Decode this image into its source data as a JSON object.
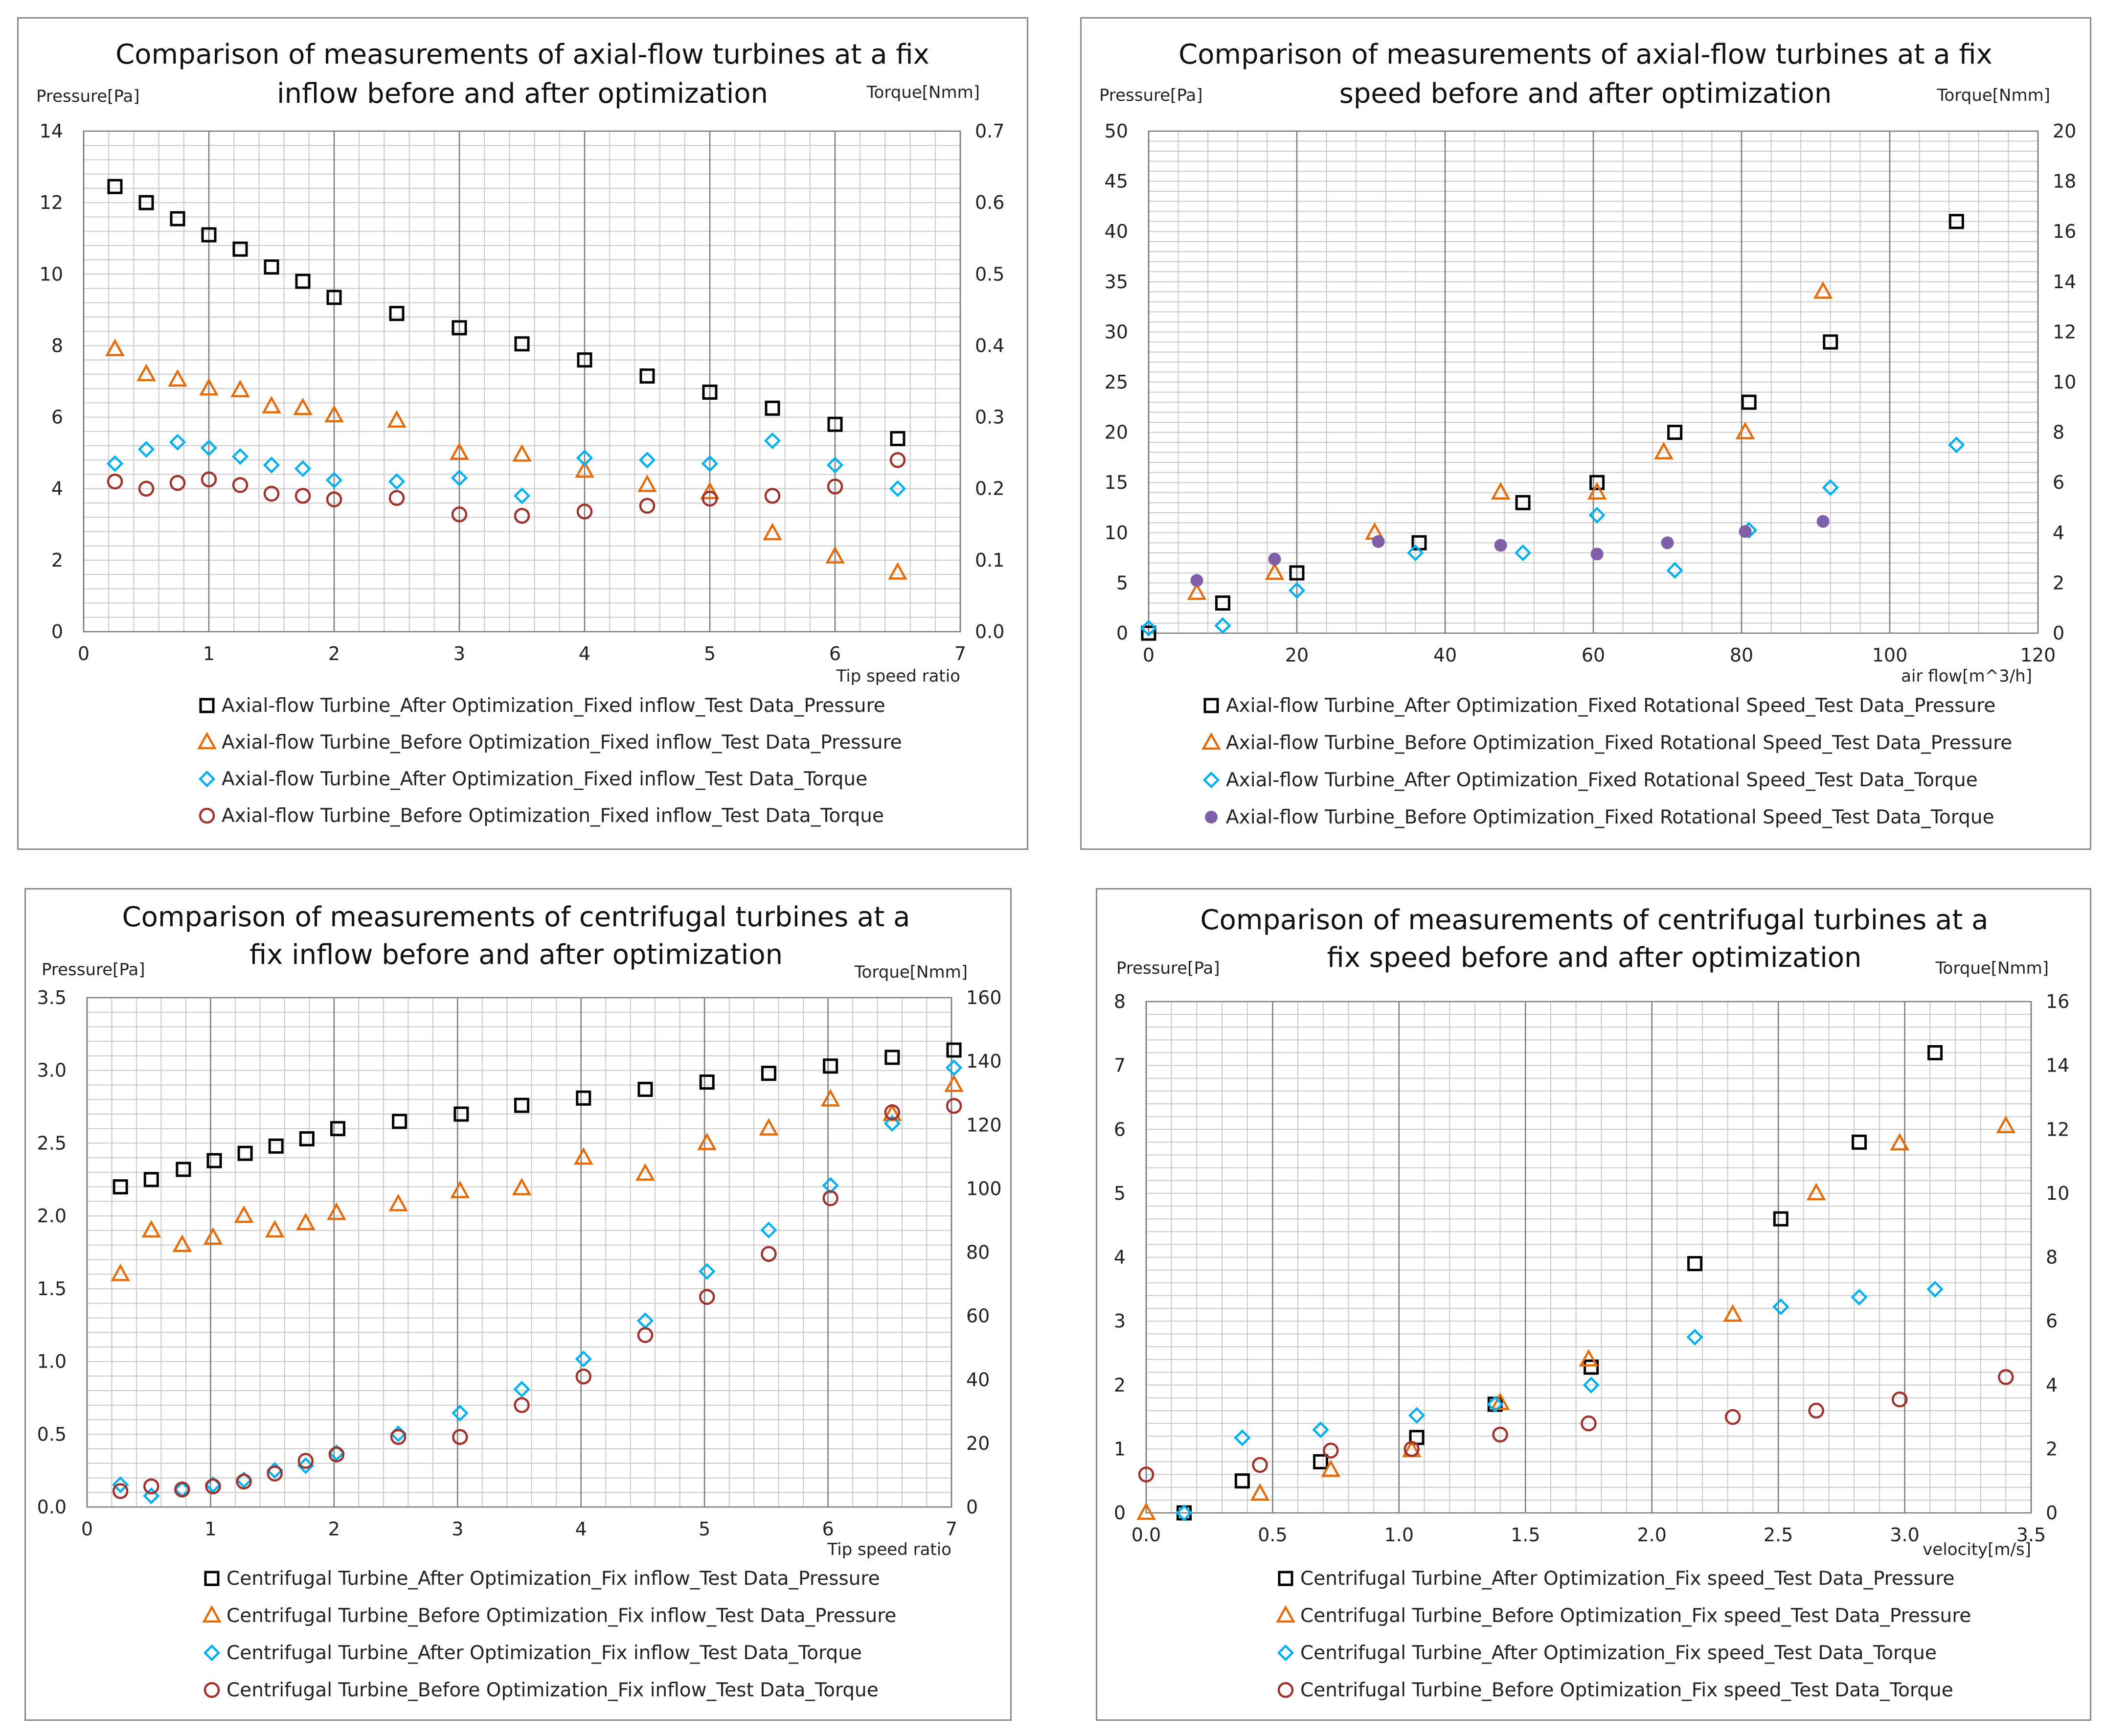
{
  "chart_data": [
    {
      "type": "scatter",
      "title": [
        "Comparison of measurements of axial-flow turbines at a fix",
        "inflow before and after optimization"
      ],
      "ylabel": "Pressure[Pa]",
      "y2label": "Torque[Nmm]",
      "xlabel": "Tip speed ratio",
      "xlim": [
        0,
        7
      ],
      "xstep": 1,
      "xdec": 0,
      "ylim": [
        0,
        14
      ],
      "ystep": 2,
      "ydec": 0,
      "y2lim": [
        0,
        0.7
      ],
      "y2step": 0.1,
      "y2dec": 1,
      "series": [
        {
          "name": "Axial-flow Turbine_After Optimization_Fixed inflow_Test Data_Pressure",
          "marker": "square",
          "color": "#000000",
          "axis": "left",
          "x": [
            0.25,
            0.5,
            0.75,
            1,
            1.25,
            1.5,
            1.75,
            2,
            2.5,
            3,
            3.5,
            4,
            4.5,
            5,
            5.5,
            6,
            6.5
          ],
          "y": [
            12.45,
            12.0,
            11.55,
            11.1,
            10.7,
            10.2,
            9.8,
            9.35,
            8.9,
            8.5,
            8.05,
            7.6,
            7.15,
            6.7,
            6.25,
            5.8,
            5.4
          ]
        },
        {
          "name": "Axial-flow Turbine_Before Optimization_Fixed inflow_Test Data_Pressure",
          "marker": "triangle",
          "color": "#e46c0a",
          "axis": "left",
          "x": [
            0.25,
            0.5,
            0.75,
            1,
            1.25,
            1.5,
            1.75,
            2,
            2.5,
            3,
            3.5,
            4,
            4.5,
            5,
            5.5,
            6,
            6.5
          ],
          "y": [
            7.9,
            7.2,
            7.05,
            6.8,
            6.75,
            6.3,
            6.25,
            6.05,
            5.9,
            5.0,
            4.95,
            4.5,
            4.1,
            3.9,
            2.75,
            2.1,
            1.65
          ]
        },
        {
          "name": "Axial-flow Turbine_After Optimization_Fixed inflow_Test Data_Torque",
          "marker": "diamond",
          "color": "#00b0f0",
          "axis": "right",
          "x": [
            0.25,
            0.5,
            0.75,
            1,
            1.25,
            1.5,
            1.75,
            2,
            2.5,
            3,
            3.5,
            4,
            4.5,
            5,
            5.5,
            6,
            6.5
          ],
          "y": [
            0.235,
            0.255,
            0.265,
            0.257,
            0.245,
            0.233,
            0.228,
            0.212,
            0.21,
            0.215,
            0.19,
            0.243,
            0.24,
            0.235,
            0.267,
            0.233,
            0.2
          ]
        },
        {
          "name": "Axial-flow Turbine_Before Optimization_Fixed inflow_Test Data_Torque",
          "marker": "circle",
          "color": "#a0322d",
          "axis": "right",
          "x": [
            0.25,
            0.5,
            0.75,
            1,
            1.25,
            1.5,
            1.75,
            2,
            2.5,
            3,
            3.5,
            4,
            4.5,
            5,
            5.5,
            6,
            6.5
          ],
          "y": [
            0.21,
            0.2,
            0.208,
            0.213,
            0.205,
            0.193,
            0.19,
            0.185,
            0.187,
            0.164,
            0.162,
            0.168,
            0.176,
            0.186,
            0.19,
            0.203,
            0.24
          ]
        }
      ]
    },
    {
      "type": "scatter",
      "title": [
        "Comparison of measurements of axial-flow turbines at a fix",
        "speed before and after optimization"
      ],
      "ylabel": "Pressure[Pa]",
      "y2label": "Torque[Nmm]",
      "xlabel": "air flow[m^3/h]",
      "xlim": [
        0,
        120
      ],
      "xstep": 20,
      "xdec": 0,
      "ylim": [
        0,
        50
      ],
      "ystep": 5,
      "ydec": 0,
      "y2lim": [
        0,
        20
      ],
      "y2step": 2,
      "y2dec": 0,
      "series": [
        {
          "name": "Axial-flow Turbine_After Optimization_Fixed Rotational Speed_Test Data_Pressure",
          "marker": "square",
          "color": "#000000",
          "axis": "left",
          "x": [
            0,
            10,
            20,
            36.5,
            50.5,
            60.5,
            71,
            81,
            92,
            109
          ],
          "y": [
            0,
            3,
            6,
            9,
            13,
            15,
            20,
            23,
            29,
            41
          ]
        },
        {
          "name": "Axial-flow Turbine_Before Optimization_Fixed Rotational Speed_Test Data_Pressure",
          "marker": "triangle",
          "color": "#e46c0a",
          "axis": "left",
          "x": [
            6.5,
            17,
            30.5,
            47.5,
            60.5,
            69.5,
            80.5,
            91
          ],
          "y": [
            4,
            6,
            10,
            14,
            14,
            18,
            20,
            34
          ]
        },
        {
          "name": "Axial-flow Turbine_After Optimization_Fixed Rotational Speed_Test Data_Torque",
          "marker": "diamond",
          "color": "#00b0f0",
          "axis": "right",
          "x": [
            0,
            10,
            20,
            36,
            50.5,
            60.5,
            71,
            81,
            92,
            109
          ],
          "y": [
            0.2,
            0.3,
            1.7,
            3.2,
            3.2,
            4.7,
            2.5,
            4.1,
            5.8,
            7.5
          ]
        },
        {
          "name": "Axial-flow Turbine_Before Optimization_Fixed Rotational Speed_Test Data_Torque",
          "marker": "dot",
          "color": "#7f60a8",
          "axis": "right",
          "x": [
            6.5,
            17,
            31,
            47.5,
            60.5,
            70,
            80.5,
            91
          ],
          "y": [
            2.1,
            2.95,
            3.65,
            3.5,
            3.15,
            3.6,
            4.05,
            4.45
          ]
        }
      ]
    },
    {
      "type": "scatter",
      "title": [
        "Comparison of measurements of centrifugal turbines at a",
        "fix inflow before and after optimization"
      ],
      "ylabel": "Pressure[Pa]",
      "y2label": "Torque[Nmm]",
      "xlabel": "Tip speed ratio",
      "xlim": [
        0,
        7
      ],
      "xstep": 1,
      "xdec": 0,
      "ylim": [
        0,
        3.5
      ],
      "ystep": 0.5,
      "ydec": 1,
      "y2lim": [
        0,
        160
      ],
      "y2step": 20,
      "y2dec": 0,
      "series": [
        {
          "name": "Centrifugal Turbine_After Optimization_Fix inflow_Test Data_Pressure",
          "marker": "square",
          "color": "#000000",
          "axis": "left",
          "x": [
            0.27,
            0.52,
            0.78,
            1.03,
            1.28,
            1.53,
            1.78,
            2.03,
            2.53,
            3.03,
            3.52,
            4.02,
            4.52,
            5.02,
            5.52,
            6.02,
            6.52,
            7.02
          ],
          "y": [
            2.2,
            2.25,
            2.32,
            2.38,
            2.43,
            2.48,
            2.53,
            2.6,
            2.65,
            2.7,
            2.76,
            2.81,
            2.87,
            2.92,
            2.98,
            3.03,
            3.09,
            3.14
          ]
        },
        {
          "name": "Centrifugal Turbine_Before Optimization_Fix inflow_Test Data_Pressure",
          "marker": "triangle",
          "color": "#e46c0a",
          "axis": "left",
          "x": [
            0.27,
            0.52,
            0.77,
            1.02,
            1.27,
            1.52,
            1.77,
            2.02,
            2.52,
            3.02,
            3.52,
            4.02,
            4.52,
            5.02,
            5.52,
            6.02,
            6.52,
            7.02
          ],
          "y": [
            1.6,
            1.9,
            1.8,
            1.85,
            2.0,
            1.9,
            1.95,
            2.02,
            2.08,
            2.17,
            2.19,
            2.4,
            2.29,
            2.5,
            2.6,
            2.8,
            2.7,
            2.9
          ]
        },
        {
          "name": "Centrifugal Turbine_After Optimization_Fix inflow_Test Data_Torque",
          "marker": "diamond",
          "color": "#00b0f0",
          "axis": "right",
          "x": [
            0.27,
            0.52,
            0.77,
            1.02,
            1.27,
            1.52,
            1.77,
            2.02,
            2.52,
            3.02,
            3.52,
            4.02,
            4.52,
            5.02,
            5.52,
            6.02,
            6.52,
            7.02
          ],
          "y": [
            7,
            3.5,
            5.5,
            7,
            8.5,
            11.5,
            13,
            17,
            23,
            29.5,
            37,
            46.5,
            58.5,
            74,
            87,
            101,
            120.5,
            138
          ]
        },
        {
          "name": "Centrifugal Turbine_Before Optimization_Fix inflow_Test Data_Torque",
          "marker": "circle",
          "color": "#a0322d",
          "axis": "right",
          "x": [
            0.27,
            0.52,
            0.77,
            1.02,
            1.27,
            1.52,
            1.77,
            2.02,
            2.52,
            3.02,
            3.52,
            4.02,
            4.52,
            5.02,
            5.52,
            6.02,
            6.52,
            7.02
          ],
          "y": [
            5,
            6.5,
            5.5,
            6.5,
            8,
            10.5,
            14.5,
            16.5,
            22,
            22,
            32,
            41,
            54,
            66,
            79.5,
            97,
            124,
            126
          ]
        }
      ]
    },
    {
      "type": "scatter",
      "title": [
        "Comparison of measurements of centrifugal turbines at a",
        "fix speed before and after optimization"
      ],
      "ylabel": "Pressure[Pa]",
      "y2label": "Torque[Nmm]",
      "xlabel": "velocity[m/s]",
      "xlim": [
        0,
        3.5
      ],
      "xstep": 0.5,
      "xdec": 1,
      "ylim": [
        0,
        8
      ],
      "ystep": 1,
      "ydec": 0,
      "y2lim": [
        0,
        16
      ],
      "y2step": 2,
      "y2dec": 0,
      "series": [
        {
          "name": "Centrifugal Turbine_After Optimization_Fix speed_Test Data_Pressure",
          "marker": "square",
          "color": "#000000",
          "axis": "left",
          "x": [
            0.15,
            0.38,
            0.69,
            1.07,
            1.38,
            1.76,
            2.17,
            2.51,
            2.82,
            3.12
          ],
          "y": [
            0,
            0.5,
            0.8,
            1.18,
            1.7,
            2.28,
            3.9,
            4.6,
            5.8,
            7.2
          ]
        },
        {
          "name": "Centrifugal Turbine_Before Optimization_Fix speed_Test Data_Pressure",
          "marker": "triangle",
          "color": "#e46c0a",
          "axis": "left",
          "x": [
            0,
            0.45,
            0.73,
            1.05,
            1.4,
            1.75,
            2.32,
            2.65,
            2.98,
            3.4
          ],
          "y": [
            0,
            0.3,
            0.67,
            0.98,
            1.72,
            2.4,
            3.1,
            5.0,
            5.78,
            6.05
          ]
        },
        {
          "name": "Centrifugal Turbine_After Optimization_Fix speed_Test Data_Torque",
          "marker": "diamond",
          "color": "#00b0f0",
          "axis": "right",
          "x": [
            0.15,
            0.38,
            0.69,
            1.07,
            1.38,
            1.76,
            2.17,
            2.51,
            2.82,
            3.12
          ],
          "y": [
            0,
            2.35,
            2.6,
            3.05,
            3.4,
            4.0,
            5.5,
            6.45,
            6.75,
            7.0
          ]
        },
        {
          "name": "Centrifugal Turbine_Before Optimization_Fix speed_Test Data_Torque",
          "marker": "circle",
          "color": "#a0322d",
          "axis": "right",
          "x": [
            0,
            0.45,
            0.73,
            1.05,
            1.4,
            1.75,
            2.32,
            2.65,
            2.98,
            3.4
          ],
          "y": [
            1.2,
            1.5,
            1.95,
            2.0,
            2.45,
            2.8,
            3.0,
            3.2,
            3.55,
            4.25
          ]
        }
      ]
    }
  ]
}
